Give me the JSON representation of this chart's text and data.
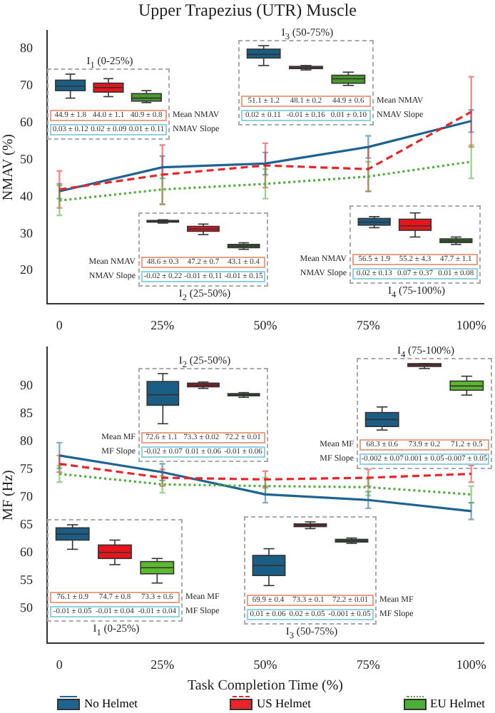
{
  "chart_data": [
    {
      "type": "line",
      "title": "Upper Trapezius (UTR) Muscle",
      "ylabel": "NMAV (%)",
      "x": [
        0,
        25,
        50,
        75,
        100
      ],
      "xlim": [
        -3,
        103
      ],
      "xticks": [
        {
          "value": 0,
          "label": "0"
        },
        {
          "value": 25,
          "label": "25%"
        },
        {
          "value": 50,
          "label": "50%"
        },
        {
          "value": 75,
          "label": "75%"
        },
        {
          "value": 100,
          "label": "100%"
        }
      ],
      "ylim": [
        11,
        85
      ],
      "yticks": [
        20,
        30,
        40,
        50,
        60,
        70,
        80
      ],
      "series": [
        {
          "color": "#1f6391",
          "line_style": "solid",
          "values": [
            41.5,
            48,
            49,
            53.5,
            60.5
          ],
          "errors": [
            2,
            3,
            3,
            3,
            3
          ]
        },
        {
          "color": "#e8262a",
          "line_style": "dashed",
          "values": [
            42,
            46,
            48.5,
            47.5,
            63
          ],
          "errors": [
            5,
            8,
            6,
            6,
            9.5
          ]
        },
        {
          "color": "#4caf3a",
          "line_style": "dotted",
          "values": [
            39,
            42,
            43.5,
            45.5,
            49.5
          ],
          "errors": [
            4,
            4,
            4,
            4,
            4.5
          ]
        }
      ]
    },
    {
      "type": "other",
      "title": "I$_{1}$ (0-25%)",
      "annotations": [
        "Mean NMAV",
        "44.9 ± 1.8",
        "44.0 ± 1.1",
        "40.9 ± 0.8",
        "NMAV Slope",
        "0.03 ± 0.12",
        "0.02 ± 0.09",
        "0.01 ± 0.11"
      ]
    },
    {
      "type": "other",
      "title": "I$_{3}$ (50-75%)",
      "annotations": [
        "Mean NMAV",
        "51.1 ± 1.2",
        "48.1 ± 0.2",
        "44.9 ± 0.6",
        "NMAV Slope",
        "0.02 ± 0.11",
        "-0.01 ± 0.16",
        "0.01 ± 0.10"
      ]
    },
    {
      "type": "other",
      "title": "I$_{2}$ (25-50%)",
      "annotations": [
        "Mean NMAV",
        "48.6 ± 0.3",
        "47.2 ± 0.7",
        "43.1 ± 0.4",
        "NMAV Slope",
        "-0.02 ± 0.22",
        "-0.01 ± 0.11",
        "-0.01 ± 0.15"
      ]
    },
    {
      "type": "other",
      "title": "I$_{4}$ (75-100%)",
      "annotations": [
        "Mean NMAV",
        "56.5 ± 1.9",
        "55.2 ± 4.3",
        "47.7 ± 1.1",
        "NMAV Slope",
        "0.02 ± 0.13",
        "0.07 ± 0.37",
        "0.01 ± 0.08"
      ]
    },
    {
      "type": "line",
      "xlabel": "Task Completion Time (%)",
      "ylabel": "MF (Hz)",
      "legend": "bottom",
      "x": [
        0,
        25,
        50,
        75,
        100
      ],
      "xlim": [
        -3,
        103
      ],
      "xticks": [
        {
          "value": 0,
          "label": "0"
        },
        {
          "value": 25,
          "label": "25%"
        },
        {
          "value": 50,
          "label": "50%"
        },
        {
          "value": 75,
          "label": "75%"
        },
        {
          "value": 100,
          "label": "100%"
        }
      ],
      "ylim": [
        43.7,
        97
      ],
      "yticks": [
        50,
        55,
        60,
        65,
        70,
        75,
        80,
        85,
        90
      ],
      "series": [
        {
          "name": "No Helmet",
          "color": "#1f6391",
          "line_style": "solid",
          "values": [
            77.5,
            74.5,
            70.5,
            69.5,
            67.5
          ],
          "errors": [
            2.3,
            1.5,
            1.5,
            1.5,
            1.5
          ]
        },
        {
          "name": "US Helmet",
          "color": "#e8262a",
          "line_style": "dashed",
          "values": [
            76,
            73.5,
            73.2,
            73.5,
            74.2
          ],
          "errors": [
            1.5,
            1.5,
            1.5,
            1.5,
            1.5
          ]
        },
        {
          "name": "EU Helmet",
          "color": "#4caf3a",
          "line_style": "dotted",
          "values": [
            74.2,
            72.3,
            72,
            71.8,
            70.5
          ],
          "errors": [
            1.5,
            1.5,
            1.5,
            1.5,
            1.5
          ]
        }
      ]
    },
    {
      "type": "other",
      "title": "I$_{2}$ (25-50%)",
      "annotations": [
        "Mean MF",
        "72.6 ± 1.1",
        "73.3 ± 0.02",
        "72.2 ± 0.01",
        "MF Slope",
        "-0.02 ± 0.07",
        "0.01 ± 0.06",
        "-0.01 ± 0.06"
      ]
    },
    {
      "type": "other",
      "title": "I$_{4}$ (75-100%)",
      "annotations": [
        "Mean MF",
        "68.3 ± 0.6",
        "73.9 ± 0.2",
        "71.2 ± 0.5",
        "MF Slope",
        "-0.002 ± 0.07",
        "0.001 ± 0.05",
        "-0.007 ± 0.05"
      ]
    },
    {
      "type": "other",
      "title": "I$_{1}$ (0-25%)",
      "annotations": [
        "Mean MF",
        "76.1 ± 0.9",
        "74.7 ± 0.8",
        "73.3 ± 0.6",
        "MF Slope",
        "-0.01 ± 0.05",
        "-0.01 ± 0.04",
        "-0.01 ± 0.04"
      ]
    },
    {
      "type": "other",
      "title": "I$_{3}$ (50-75%)",
      "annotations": [
        "Mean MF",
        "69.9 ± 0.4",
        "73.3 ± 0.1",
        "72.2 ± 0.01",
        "MF Slope",
        "0.01 ± 0.06",
        "0.02 ± 0.05",
        "-0.001 ± 0.05"
      ]
    }
  ]
}
